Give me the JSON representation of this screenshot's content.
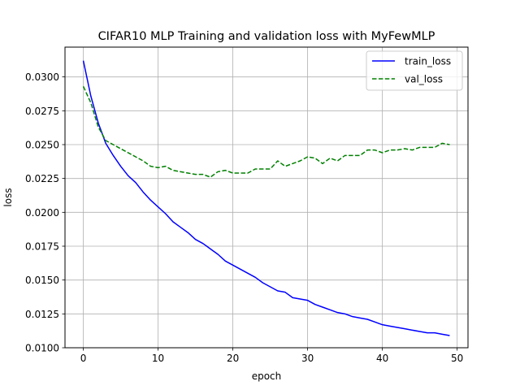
{
  "chart_data": {
    "type": "line",
    "title": "CIFAR10 MLP Training and validation loss with MyFewMLP",
    "xlabel": "epoch",
    "ylabel": "loss",
    "xlim": [
      -2.45,
      51.45
    ],
    "ylim": [
      0.01,
      0.0322
    ],
    "xticks": [
      0,
      10,
      20,
      30,
      40,
      50
    ],
    "yticks": [
      0.01,
      0.0125,
      0.015,
      0.0175,
      0.02,
      0.0225,
      0.025,
      0.0275,
      0.03
    ],
    "ytick_labels": [
      "0.0100",
      "0.0125",
      "0.0150",
      "0.0175",
      "0.0200",
      "0.0225",
      "0.0250",
      "0.0275",
      "0.0300"
    ],
    "grid": true,
    "legend_position": "top-right",
    "x": [
      0,
      1,
      2,
      3,
      4,
      5,
      6,
      7,
      8,
      9,
      10,
      11,
      12,
      13,
      14,
      15,
      16,
      17,
      18,
      19,
      20,
      21,
      22,
      23,
      24,
      25,
      26,
      27,
      28,
      29,
      30,
      31,
      32,
      33,
      34,
      35,
      36,
      37,
      38,
      39,
      40,
      41,
      42,
      43,
      44,
      45,
      46,
      47,
      48,
      49
    ],
    "series": [
      {
        "name": "train_loss",
        "color": "#0000ff",
        "style": "solid",
        "values": [
          0.0312,
          0.0286,
          0.0266,
          0.0251,
          0.0242,
          0.0234,
          0.0227,
          0.0222,
          0.0215,
          0.0209,
          0.0204,
          0.0199,
          0.0193,
          0.0189,
          0.0185,
          0.018,
          0.0177,
          0.0173,
          0.0169,
          0.0164,
          0.0161,
          0.0158,
          0.0155,
          0.0152,
          0.0148,
          0.0145,
          0.0142,
          0.0141,
          0.0137,
          0.0136,
          0.0135,
          0.0132,
          0.013,
          0.0128,
          0.0126,
          0.0125,
          0.0123,
          0.0122,
          0.0121,
          0.0119,
          0.0117,
          0.0116,
          0.0115,
          0.0114,
          0.0113,
          0.0112,
          0.0111,
          0.0111,
          0.011,
          0.0109
        ]
      },
      {
        "name": "val_loss",
        "color": "#008000",
        "style": "dashed",
        "values": [
          0.0293,
          0.0281,
          0.0263,
          0.0253,
          0.025,
          0.0247,
          0.0244,
          0.0241,
          0.0238,
          0.0234,
          0.0233,
          0.0234,
          0.0231,
          0.023,
          0.0229,
          0.0228,
          0.0228,
          0.0226,
          0.023,
          0.0231,
          0.0229,
          0.0229,
          0.0229,
          0.0232,
          0.0232,
          0.0232,
          0.0238,
          0.0234,
          0.0236,
          0.0238,
          0.0241,
          0.024,
          0.0236,
          0.024,
          0.0238,
          0.0242,
          0.0242,
          0.0242,
          0.0246,
          0.0246,
          0.0244,
          0.0246,
          0.0246,
          0.0247,
          0.0246,
          0.0248,
          0.0248,
          0.0248,
          0.0251,
          0.025
        ]
      }
    ]
  }
}
